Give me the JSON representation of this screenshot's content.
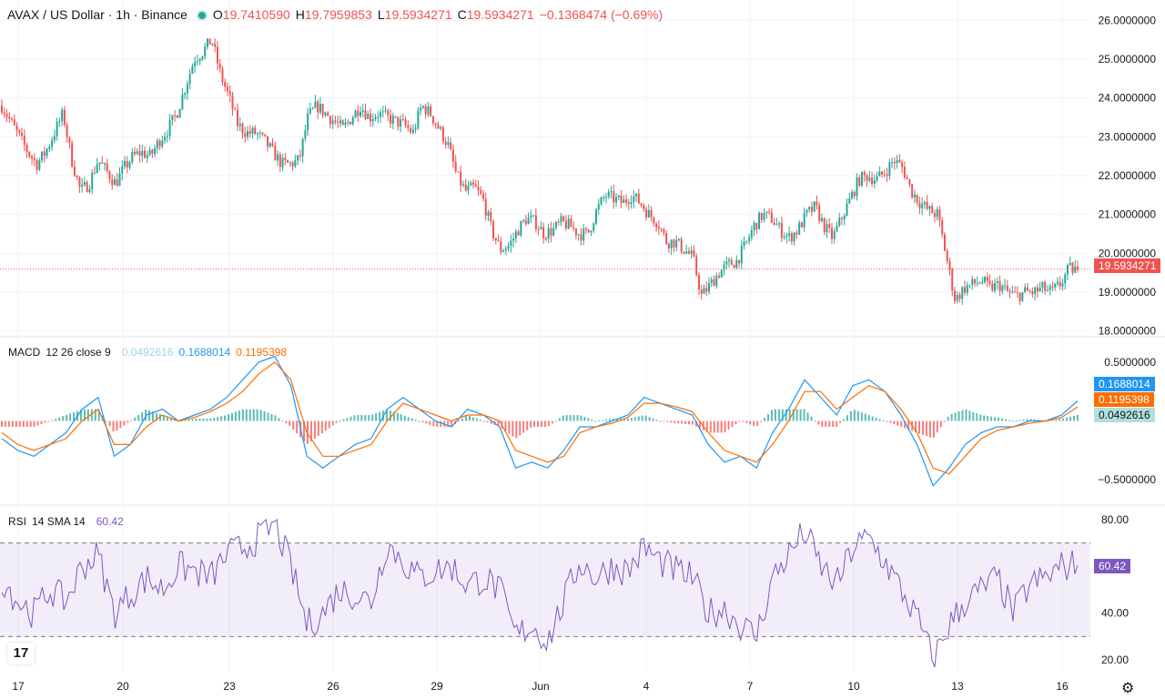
{
  "header": {
    "symbol": "AVAX / US Dollar · 1h · Binance",
    "open_label": "O",
    "open": "19.7410590",
    "high_label": "H",
    "high": "19.7959853",
    "low_label": "L",
    "low": "19.5934271",
    "close_label": "C",
    "close": "19.5934271",
    "change": "−0.1368474 (−0.69%)"
  },
  "macd_legend": {
    "name": "MACD",
    "params": "12 26 close 9",
    "histogram": "0.0492616",
    "macd": "0.1688014",
    "signal": "0.1195398"
  },
  "rsi_legend": {
    "name": "RSI",
    "params": "14 SMA 14",
    "value": "60.42"
  },
  "price_tag": "19.5934271",
  "macd_tags": [
    "0.1688014",
    "0.1195398",
    "0.0492616"
  ],
  "rsi_tag": "60.42",
  "logo_text": "17",
  "settings_icon": "gear-icon",
  "colors": {
    "up": "#26a69a",
    "down": "#ef5350",
    "macd": "#2196f3",
    "signal": "#ff6d00",
    "rsi": "#7e57c2",
    "hist_up": "#26a69a",
    "hist_down": "#ef5350"
  },
  "chart_data": [
    {
      "type": "candlestick",
      "panel": "price",
      "title": "AVAX / US Dollar · 1h · Binance",
      "y_ticks": [
        "26.0000000",
        "25.0000000",
        "24.0000000",
        "23.0000000",
        "22.0000000",
        "21.0000000",
        "20.0000000",
        "19.0000000",
        "18.0000000"
      ],
      "ylim": [
        17.9,
        26.1
      ],
      "x_ticks": [
        "17",
        "20",
        "23",
        "26",
        "29",
        "Jun",
        "4",
        "7",
        "10",
        "13",
        "16"
      ],
      "last_price": 19.5934271,
      "close_path": [
        [
          "May 17 00:00",
          23.8
        ],
        [
          "May 17 06:00",
          23.4
        ],
        [
          "May 17 12:00",
          23.0
        ],
        [
          "May 17 18:00",
          22.6
        ],
        [
          "May 18 00:00",
          22.3
        ],
        [
          "May 18 06:00",
          22.6
        ],
        [
          "May 18 12:00",
          23.1
        ],
        [
          "May 18 18:00",
          23.6
        ],
        [
          "May 19 00:00",
          22.4
        ],
        [
          "May 19 06:00",
          21.6
        ],
        [
          "May 19 12:00",
          21.8
        ],
        [
          "May 19 18:00",
          22.4
        ],
        [
          "May 20 00:00",
          22.1
        ],
        [
          "May 20 06:00",
          21.8
        ],
        [
          "May 20 12:00",
          22.2
        ],
        [
          "May 20 18:00",
          22.5
        ],
        [
          "May 21 00:00",
          22.6
        ],
        [
          "May 21 06:00",
          22.5
        ],
        [
          "May 21 12:00",
          22.9
        ],
        [
          "May 21 18:00",
          23.2
        ],
        [
          "May 22 00:00",
          23.6
        ],
        [
          "May 22 06:00",
          24.3
        ],
        [
          "May 22 12:00",
          25.0
        ],
        [
          "May 22 18:00",
          25.2
        ],
        [
          "May 23 00:00",
          25.5
        ],
        [
          "May 23 06:00",
          24.6
        ],
        [
          "May 23 12:00",
          24.0
        ],
        [
          "May 23 18:00",
          23.3
        ],
        [
          "May 24 00:00",
          23.1
        ],
        [
          "May 24 06:00",
          23.1
        ],
        [
          "May 24 12:00",
          22.9
        ],
        [
          "May 24 18:00",
          22.6
        ],
        [
          "May 25 00:00",
          22.3
        ],
        [
          "May 25 06:00",
          22.3
        ],
        [
          "May 25 12:00",
          22.4
        ],
        [
          "May 25 18:00",
          23.5
        ],
        [
          "May 26 00:00",
          23.8
        ],
        [
          "May 26 06:00",
          23.6
        ],
        [
          "May 26 12:00",
          23.4
        ],
        [
          "May 26 18:00",
          23.2
        ],
        [
          "May 27 00:00",
          23.5
        ],
        [
          "May 27 06:00",
          23.8
        ],
        [
          "May 27 12:00",
          23.5
        ],
        [
          "May 27 18:00",
          23.6
        ],
        [
          "May 28 00:00",
          23.5
        ],
        [
          "May 28 06:00",
          23.4
        ],
        [
          "May 28 12:00",
          23.3
        ],
        [
          "May 28 18:00",
          23.1
        ],
        [
          "May 29 00:00",
          23.8
        ],
        [
          "May 29 06:00",
          23.6
        ],
        [
          "May 29 12:00",
          23.2
        ],
        [
          "May 29 18:00",
          22.8
        ],
        [
          "May 30 00:00",
          22.0
        ],
        [
          "May 30 06:00",
          21.6
        ],
        [
          "May 30 12:00",
          21.7
        ],
        [
          "May 30 18:00",
          21.4
        ],
        [
          "May 31 00:00",
          20.6
        ],
        [
          "May 31 06:00",
          20.1
        ],
        [
          "May 31 12:00",
          20.2
        ],
        [
          "May 31 18:00",
          20.6
        ],
        [
          "Jun 1 00:00",
          20.9
        ],
        [
          "Jun 1 06:00",
          20.8
        ],
        [
          "Jun 1 12:00",
          20.5
        ],
        [
          "Jun 1 18:00",
          20.6
        ],
        [
          "Jun 2 00:00",
          20.8
        ],
        [
          "Jun 2 06:00",
          20.7
        ],
        [
          "Jun 2 12:00",
          20.5
        ],
        [
          "Jun 2 18:00",
          20.5
        ],
        [
          "Jun 3 00:00",
          21.1
        ],
        [
          "Jun 3 06:00",
          21.5
        ],
        [
          "Jun 3 12:00",
          21.4
        ],
        [
          "Jun 3 18:00",
          21.3
        ],
        [
          "Jun 4 00:00",
          21.5
        ],
        [
          "Jun 4 06:00",
          21.3
        ],
        [
          "Jun 4 12:00",
          21.0
        ],
        [
          "Jun 4 18:00",
          20.8
        ],
        [
          "Jun 5 00:00",
          20.3
        ],
        [
          "Jun 5 06:00",
          20.3
        ],
        [
          "Jun 5 12:00",
          20.1
        ],
        [
          "Jun 5 18:00",
          19.9
        ],
        [
          "Jun 6 00:00",
          18.9
        ],
        [
          "Jun 6 06:00",
          19.2
        ],
        [
          "Jun 6 12:00",
          19.5
        ],
        [
          "Jun 6 18:00",
          19.7
        ],
        [
          "Jun 7 00:00",
          19.8
        ],
        [
          "Jun 7 06:00",
          20.2
        ],
        [
          "Jun 7 12:00",
          20.7
        ],
        [
          "Jun 7 18:00",
          21.0
        ],
        [
          "Jun 8 00:00",
          20.9
        ],
        [
          "Jun 8 06:00",
          20.6
        ],
        [
          "Jun 8 12:00",
          20.4
        ],
        [
          "Jun 8 18:00",
          20.6
        ],
        [
          "Jun 9 00:00",
          21.0
        ],
        [
          "Jun 9 06:00",
          21.2
        ],
        [
          "Jun 9 12:00",
          20.7
        ],
        [
          "Jun 9 18:00",
          20.4
        ],
        [
          "Jun 10 00:00",
          20.9
        ],
        [
          "Jun 10 06:00",
          21.4
        ],
        [
          "Jun 10 12:00",
          21.9
        ],
        [
          "Jun 10 18:00",
          22.0
        ],
        [
          "Jun 11 00:00",
          21.9
        ],
        [
          "Jun 11 06:00",
          22.1
        ],
        [
          "Jun 11 12:00",
          22.4
        ],
        [
          "Jun 11 18:00",
          22.2
        ],
        [
          "Jun 12 00:00",
          21.6
        ],
        [
          "Jun 12 06:00",
          21.3
        ],
        [
          "Jun 12 12:00",
          21.1
        ],
        [
          "Jun 12 18:00",
          21.0
        ],
        [
          "Jun 13 00:00",
          19.9
        ],
        [
          "Jun 13 06:00",
          18.8
        ],
        [
          "Jun 13 12:00",
          19.1
        ],
        [
          "Jun 13 18:00",
          19.2
        ],
        [
          "Jun 14 00:00",
          19.3
        ],
        [
          "Jun 14 06:00",
          19.1
        ],
        [
          "Jun 14 12:00",
          19.2
        ],
        [
          "Jun 14 18:00",
          19.0
        ],
        [
          "Jun 15 00:00",
          18.9
        ],
        [
          "Jun 15 06:00",
          19.0
        ],
        [
          "Jun 15 12:00",
          19.0
        ],
        [
          "Jun 15 18:00",
          19.1
        ],
        [
          "Jun 16 00:00",
          19.0
        ],
        [
          "Jun 16 06:00",
          19.2
        ],
        [
          "Jun 16 12:00",
          19.6
        ],
        [
          "Jun 16 18:00",
          19.59
        ]
      ]
    },
    {
      "type": "line",
      "panel": "macd",
      "title": "MACD 12 26 close 9",
      "y_ticks": [
        "0.5000000",
        "−0.5000000"
      ],
      "ylim": [
        -0.7,
        0.7
      ],
      "series": [
        {
          "name": "MACD",
          "values": [
            -0.15,
            -0.25,
            -0.3,
            -0.2,
            -0.1,
            0.1,
            0.2,
            -0.3,
            -0.2,
            0.05,
            0.1,
            0.0,
            0.05,
            0.1,
            0.2,
            0.35,
            0.5,
            0.55,
            0.3,
            -0.3,
            -0.4,
            -0.3,
            -0.2,
            -0.15,
            0.1,
            0.2,
            0.1,
            0.0,
            -0.05,
            0.1,
            0.05,
            -0.05,
            -0.4,
            -0.35,
            -0.4,
            -0.25,
            -0.05,
            -0.05,
            0.0,
            0.05,
            0.2,
            0.15,
            0.1,
            0.05,
            -0.2,
            -0.35,
            -0.3,
            -0.4,
            -0.1,
            0.1,
            0.35,
            0.2,
            0.05,
            0.3,
            0.35,
            0.25,
            0.05,
            -0.2,
            -0.55,
            -0.4,
            -0.2,
            -0.1,
            -0.05,
            -0.05,
            0.0,
            0.0,
            0.05,
            0.17
          ]
        },
        {
          "name": "Signal",
          "values": [
            -0.1,
            -0.2,
            -0.25,
            -0.2,
            -0.15,
            0.0,
            0.1,
            -0.2,
            -0.2,
            -0.05,
            0.05,
            0.0,
            0.03,
            0.08,
            0.15,
            0.25,
            0.4,
            0.5,
            0.35,
            -0.1,
            -0.3,
            -0.3,
            -0.25,
            -0.2,
            0.0,
            0.15,
            0.1,
            0.05,
            0.0,
            0.05,
            0.05,
            0.0,
            -0.25,
            -0.3,
            -0.35,
            -0.3,
            -0.1,
            -0.05,
            -0.02,
            0.03,
            0.15,
            0.15,
            0.12,
            0.08,
            -0.1,
            -0.25,
            -0.3,
            -0.35,
            -0.2,
            0.0,
            0.25,
            0.25,
            0.1,
            0.2,
            0.3,
            0.25,
            0.1,
            -0.1,
            -0.4,
            -0.45,
            -0.3,
            -0.15,
            -0.08,
            -0.05,
            -0.02,
            0.0,
            0.03,
            0.12
          ]
        }
      ]
    },
    {
      "type": "line",
      "panel": "rsi",
      "title": "RSI 14 SMA 14",
      "y_ticks": [
        "80.00",
        "40.00",
        "20.00"
      ],
      "ylim": [
        15,
        85
      ],
      "band": [
        30,
        70
      ],
      "series": [
        {
          "name": "RSI",
          "values": [
            55,
            45,
            40,
            50,
            45,
            60,
            65,
            40,
            48,
            55,
            50,
            60,
            58,
            55,
            65,
            68,
            72,
            78,
            60,
            35,
            40,
            50,
            48,
            45,
            70,
            62,
            55,
            58,
            60,
            52,
            55,
            50,
            30,
            35,
            28,
            45,
            62,
            55,
            60,
            58,
            68,
            62,
            58,
            55,
            40,
            42,
            35,
            30,
            55,
            65,
            75,
            60,
            52,
            68,
            72,
            62,
            50,
            38,
            20,
            35,
            45,
            50,
            55,
            40,
            52,
            55,
            60,
            60.42
          ]
        }
      ]
    }
  ]
}
